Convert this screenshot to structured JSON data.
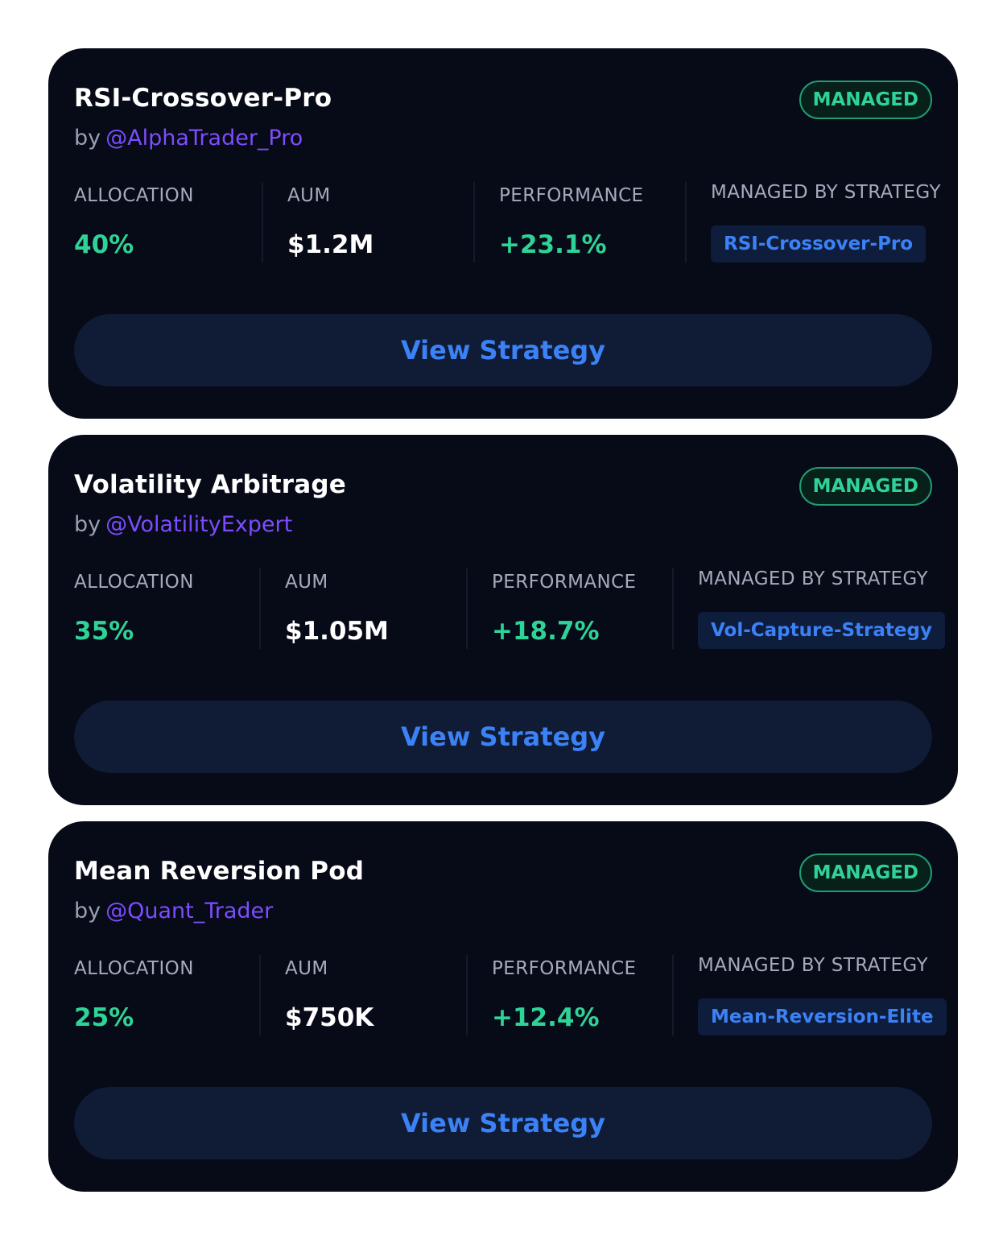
{
  "cards": [
    {
      "title": "RSI-Crossover-Pro",
      "by": "by",
      "handle": "@AlphaTrader_Pro",
      "badge": "MANAGED",
      "stats": {
        "allocation_label": "ALLOCATION",
        "allocation_value": "40%",
        "aum_label": "AUM",
        "aum_value": "$1.2M",
        "performance_label": "PERFORMANCE",
        "performance_value": "+23.1%",
        "managed_by_label": "MANAGED BY STRATEGY",
        "managed_by_value": "RSI-Crossover-Pro"
      },
      "button_label": "View Strategy"
    },
    {
      "title": "Volatility Arbitrage",
      "by": "by",
      "handle": "@VolatilityExpert",
      "badge": "MANAGED",
      "stats": {
        "allocation_label": "ALLOCATION",
        "allocation_value": "35%",
        "aum_label": "AUM",
        "aum_value": "$1.05M",
        "performance_label": "PERFORMANCE",
        "performance_value": "+18.7%",
        "managed_by_label": "MANAGED BY STRATEGY",
        "managed_by_value": "Vol-Capture-Strategy"
      },
      "button_label": "View Strategy"
    },
    {
      "title": "Mean Reversion Pod",
      "by": "by",
      "handle": "@Quant_Trader",
      "badge": "MANAGED",
      "stats": {
        "allocation_label": "ALLOCATION",
        "allocation_value": "25%",
        "aum_label": "AUM",
        "aum_value": "$750K",
        "performance_label": "PERFORMANCE",
        "performance_value": "+12.4%",
        "managed_by_label": "MANAGED BY STRATEGY",
        "managed_by_value": "Mean-Reversion-Elite"
      },
      "button_label": "View Strategy"
    }
  ],
  "colors": {
    "card_background": "#070a17",
    "accent_green": "#2fd397",
    "accent_blue": "#3b82f6",
    "handle_purple": "#7c4dff",
    "button_background": "#101b36"
  }
}
